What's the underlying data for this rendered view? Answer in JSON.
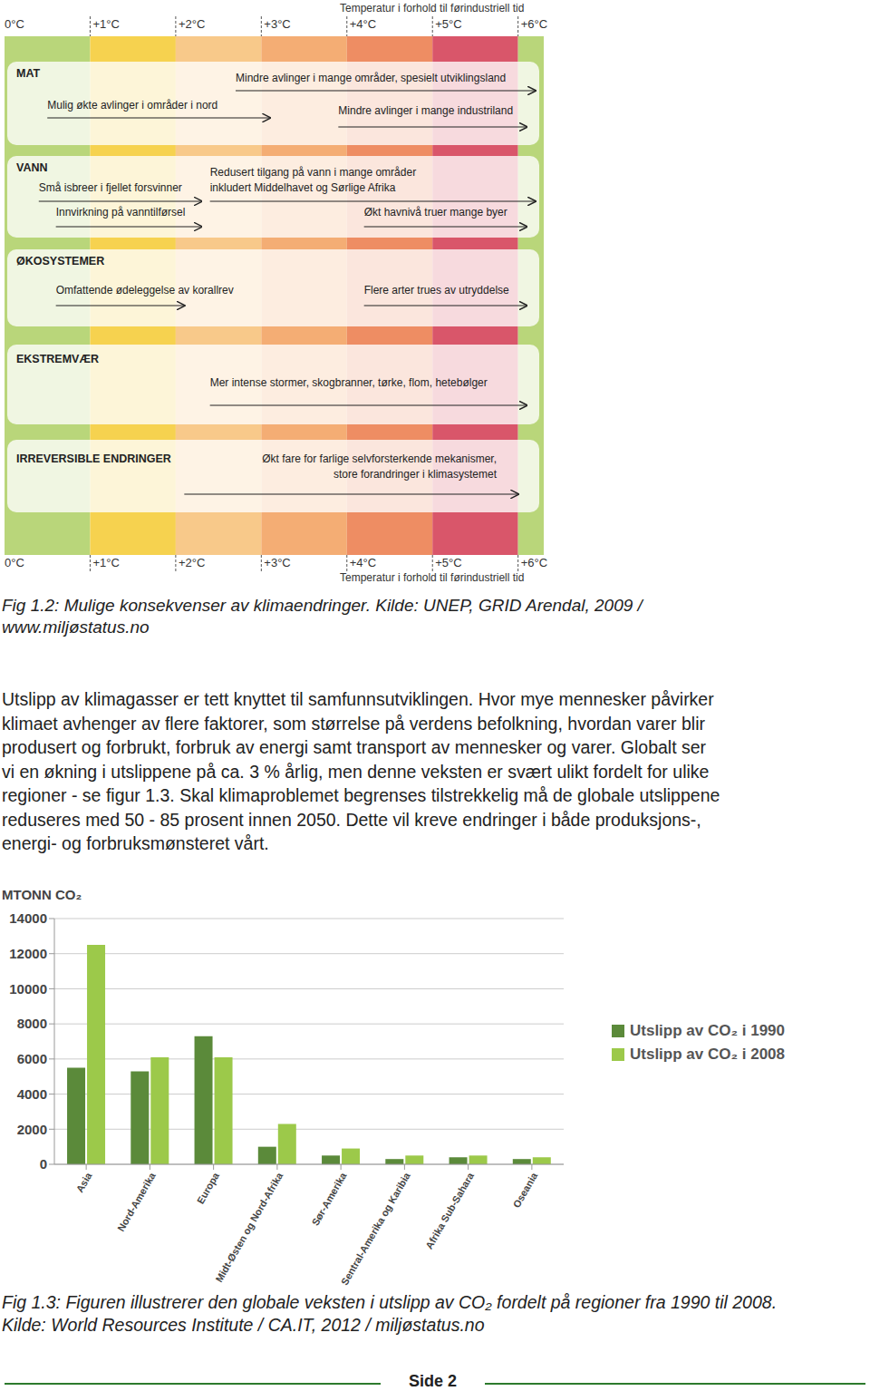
{
  "diagram": {
    "axis_title": "Temperatur i forhold til førindustriell tid",
    "xlim": [
      0,
      6.3
    ],
    "xticks": [
      {
        "value": 0,
        "label": "0°C"
      },
      {
        "value": 1,
        "label": "+1°C"
      },
      {
        "value": 2,
        "label": "+2°C"
      },
      {
        "value": 3,
        "label": "+3°C"
      },
      {
        "value": 4,
        "label": "+4°C"
      },
      {
        "value": 5,
        "label": "+5°C"
      },
      {
        "value": 6,
        "label": "+6°C"
      }
    ],
    "sections": [
      {
        "title": "MAT",
        "items": [
          {
            "text": [
              "Mindre avlinger i mange områder, spesielt utviklingsland"
            ],
            "from": 2.7,
            "to": 6.2
          },
          {
            "text": [
              "Mulig økte avlinger i områder i nord"
            ],
            "from": 0.5,
            "to": 3.1
          },
          {
            "text": [
              "Mindre avlinger i mange industriland"
            ],
            "from": 3.9,
            "to": 6.1
          }
        ]
      },
      {
        "title": "VANN",
        "items": [
          {
            "text": [
              "Små isbreer i fjellet forsvinner"
            ],
            "from": 0.4,
            "to": 2.3
          },
          {
            "text": [
              "Redusert tilgang på vann i mange områder",
              "inkludert Middelhavet og Sørlige Afrika"
            ],
            "from": 2.4,
            "to": 6.2
          },
          {
            "text": [
              "Innvirkning på vanntilførsel"
            ],
            "from": 0.6,
            "to": 2.3
          },
          {
            "text": [
              "Økt havnivå truer mange byer"
            ],
            "from": 4.2,
            "to": 6.1
          }
        ]
      },
      {
        "title": "ØKOSYSTEMER",
        "items": [
          {
            "text": [
              "Omfattende ødeleggelse av korallrev"
            ],
            "from": 0.6,
            "to": 2.1
          },
          {
            "text": [
              "Flere arter trues av utryddelse"
            ],
            "from": 4.2,
            "to": 6.1
          }
        ]
      },
      {
        "title": "EKSTREMVÆR",
        "items": [
          {
            "text": [
              "Mer intense stormer, skogbranner, tørke, flom, hetebølger"
            ],
            "from": 2.4,
            "to": 6.1
          }
        ]
      },
      {
        "title": "IRREVERSIBLE ENDRINGER",
        "items": [
          {
            "text": [
              "Økt fare for farlige selvforsterkende mekanismer,",
              "store forandringer i klimasystemet"
            ],
            "from": 2.1,
            "to": 6.0
          }
        ]
      }
    ]
  },
  "caption_1": [
    "Fig 1.2: Mulige konsekvenser av klimaendringer. Kilde: UNEP, GRID Arendal, 2009 /",
    "www.miljøstatus.no"
  ],
  "paragraph": [
    "Utslipp av klimagasser er tett knyttet til samfunnsutviklingen. Hvor mye mennesker påvirker",
    "klimaet avhenger av flere faktorer, som størrelse på verdens befolkning, hvordan varer blir",
    "produsert og forbrukt, forbruk av energi samt transport av mennesker og varer. Globalt ser",
    "vi en økning i utslippene på ca. 3 % årlig, men denne veksten er svært ulikt fordelt for ulike",
    "regioner - se figur 1.3. Skal klimaproblemet begrenses tilstrekkelig må de globale utslippene",
    "reduseres med 50 - 85 prosent innen 2050. Dette vil kreve endringer i både produksjons-,",
    "energi- og forbruksmønsteret vårt."
  ],
  "chart_data": {
    "type": "bar",
    "y_label": "MTONN CO₂",
    "categories": [
      "Asia",
      "Nord-Amerika",
      "Europa",
      "Midt-Østen og Nord-Afrika",
      "Sør-Amerika",
      "Sentral-Amerika og Karibia",
      "Afrika Sub-Sahara",
      "Oseania"
    ],
    "series": [
      {
        "name": "Utslipp av CO₂ i 1990",
        "color": "#5b8a3a",
        "values": [
          5500,
          5300,
          7300,
          1000,
          500,
          300,
          400,
          300
        ]
      },
      {
        "name": "Utslipp av CO₂ i 2008",
        "color": "#9cc94a",
        "values": [
          12500,
          6100,
          6100,
          2300,
          900,
          500,
          500,
          400
        ]
      }
    ],
    "ylim": [
      0,
      14000
    ],
    "yticks": [
      0,
      2000,
      4000,
      6000,
      8000,
      10000,
      12000,
      14000
    ],
    "grid": true,
    "legend": "right"
  },
  "caption_2": [
    "Fig 1.3: Figuren illustrerer den globale veksten i utslipp av CO₂ fordelt på regioner fra 1990 til 2008.",
    "Kilde: World Resources Institute / CA.IT, 2012 / miljøstatus.no"
  ],
  "footer": "Side 2"
}
